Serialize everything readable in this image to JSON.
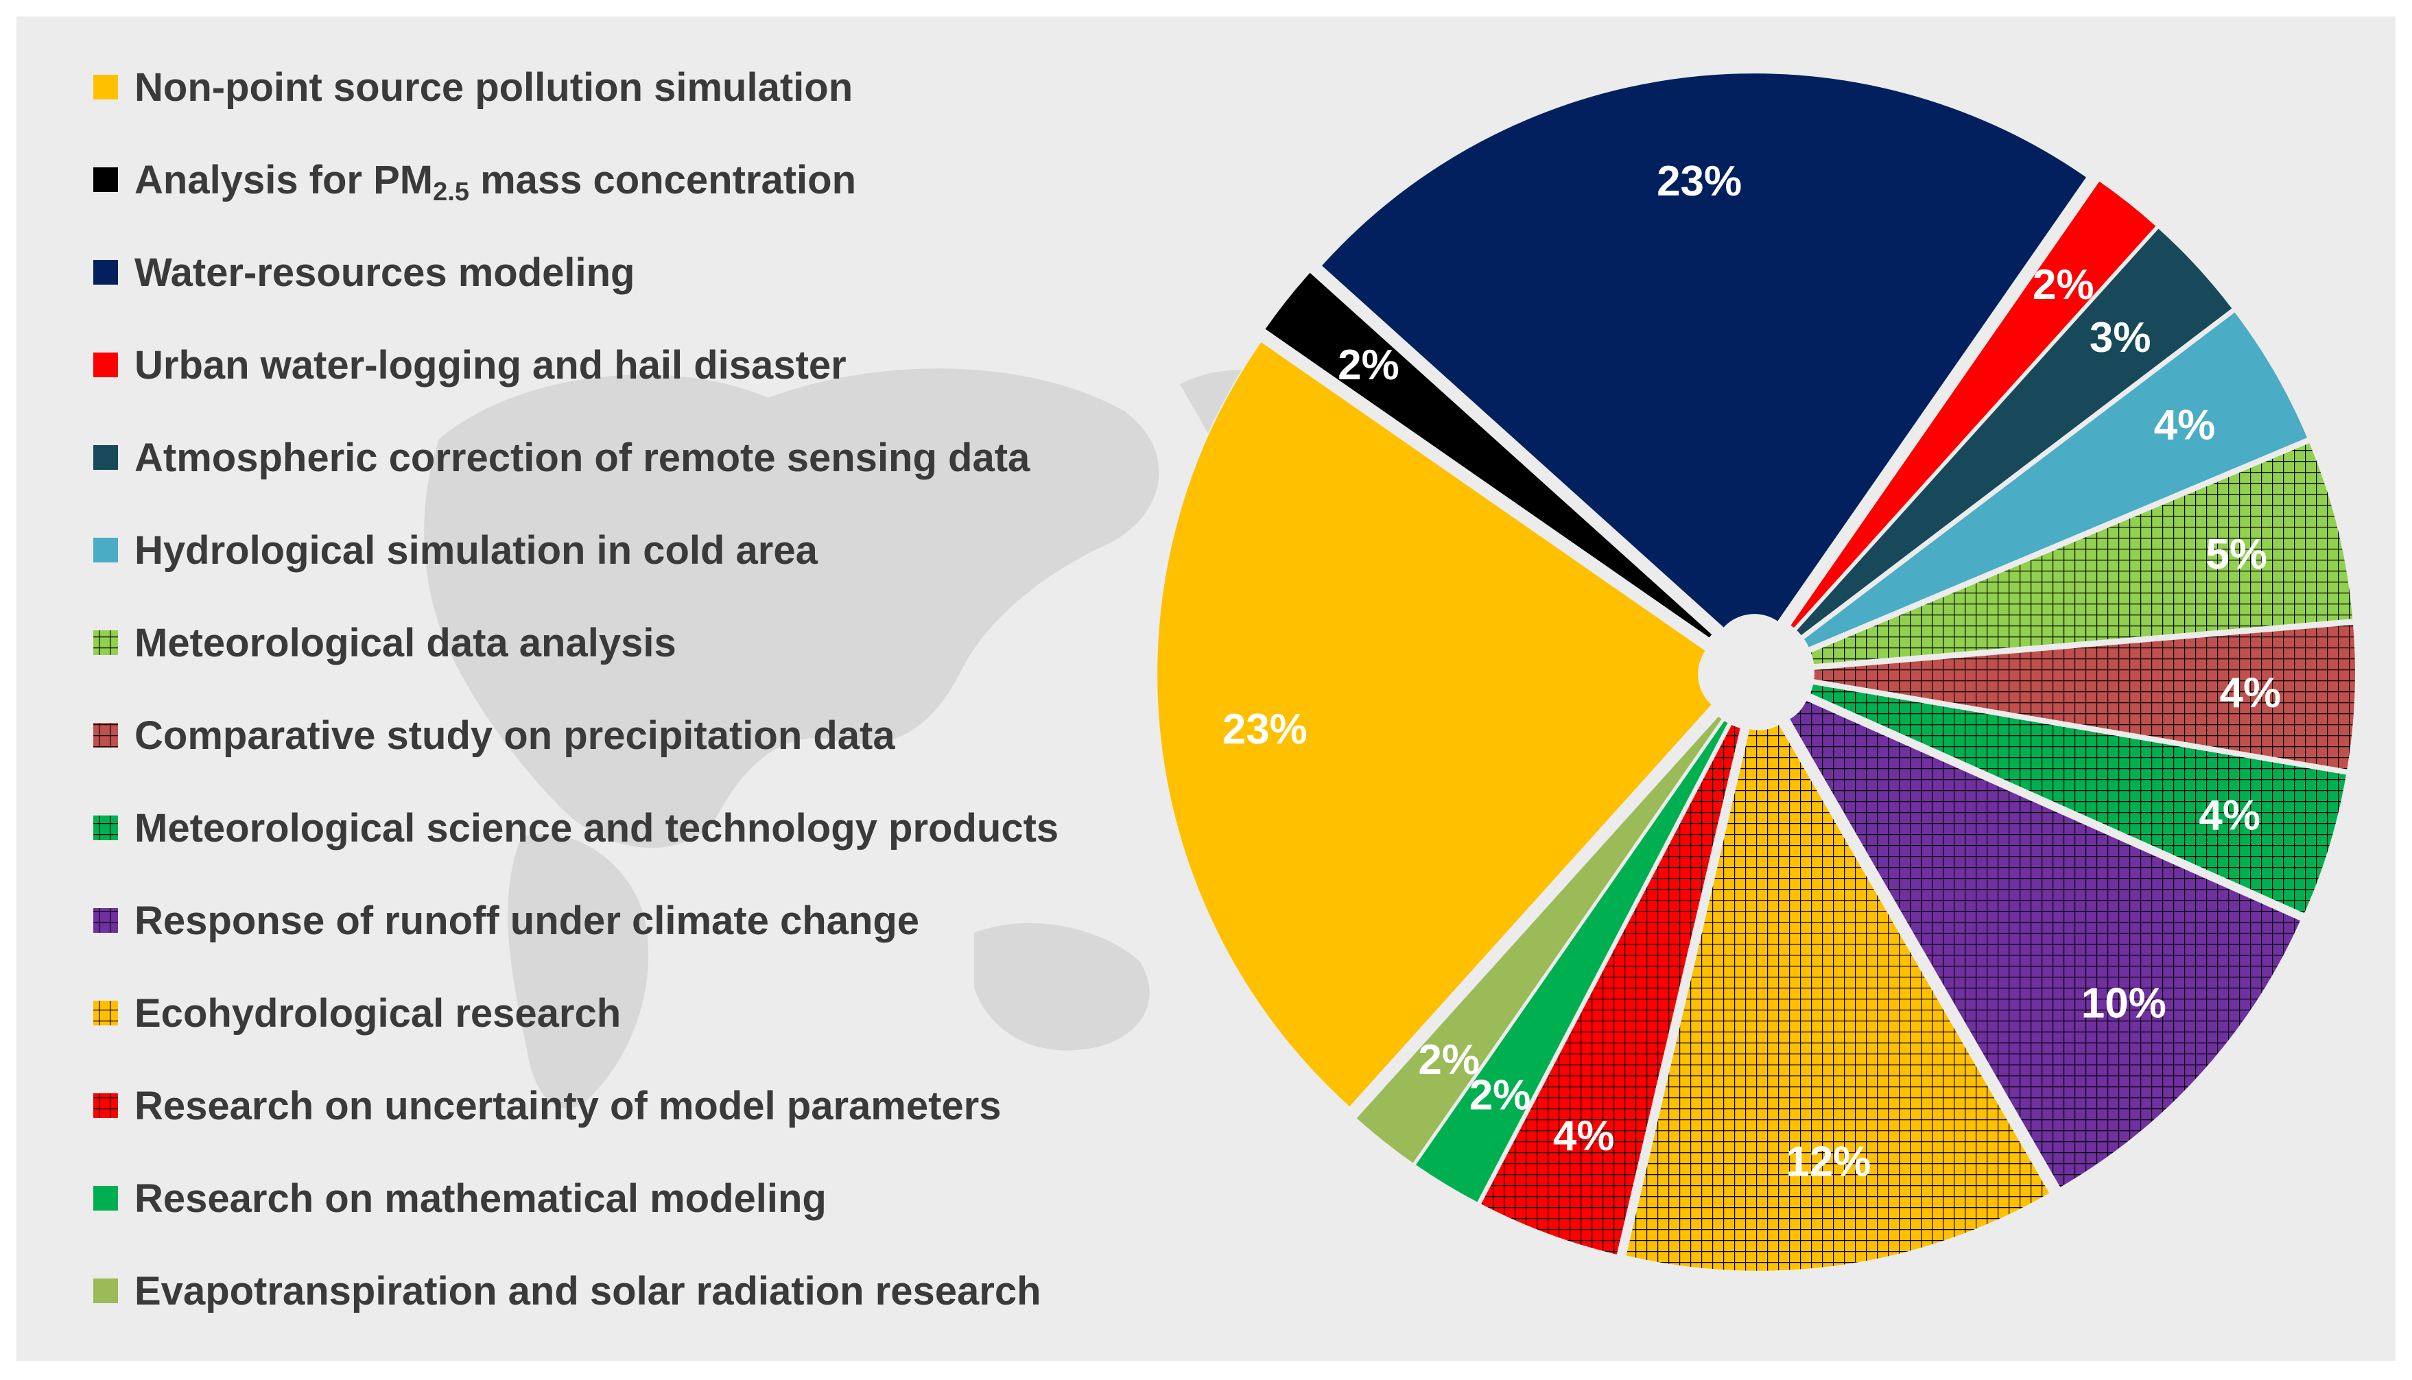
{
  "chart_data": {
    "type": "pie",
    "title": "",
    "legend_placement": "left",
    "slices": [
      {
        "label": "Water-resources modeling",
        "value": 23,
        "display": "23%",
        "color": "#02205e",
        "pattern": "solid"
      },
      {
        "label": "Urban water-logging and hail disaster",
        "value": 2,
        "display": "2%",
        "color": "#ff0000",
        "pattern": "solid"
      },
      {
        "label": "Atmospheric correction of remote sensing data",
        "value": 3,
        "display": "3%",
        "color": "#17495a",
        "pattern": "solid"
      },
      {
        "label": "Hydrological simulation in cold area",
        "value": 4,
        "display": "4%",
        "color": "#4bacc6",
        "pattern": "solid"
      },
      {
        "label": "Meteorological data analysis",
        "value": 5,
        "display": "5%",
        "color": "#92d050",
        "pattern": "grid"
      },
      {
        "label": "Comparative study on precipitation data",
        "value": 4,
        "display": "4%",
        "color": "#c0504d",
        "pattern": "grid"
      },
      {
        "label": "Meteorological science and technology products",
        "value": 4,
        "display": "4%",
        "color": "#00b050",
        "pattern": "grid"
      },
      {
        "label": "Response of runoff under climate change",
        "value": 10,
        "display": "10%",
        "color": "#7030a0",
        "pattern": "grid"
      },
      {
        "label": "Ecohydrological research",
        "value": 12,
        "display": "12%",
        "color": "#ffc000",
        "pattern": "grid"
      },
      {
        "label": "Research on uncertainty of model parameters",
        "value": 4,
        "display": "4%",
        "color": "#ff0000",
        "pattern": "grid"
      },
      {
        "label": "Research on mathematical modeling",
        "value": 2,
        "display": "2%",
        "color": "#00b050",
        "pattern": "solid"
      },
      {
        "label": "Evapotranspiration and solar radiation research",
        "value": 2,
        "display": "2%",
        "color": "#9bbb59",
        "pattern": "solid"
      },
      {
        "label": "Non-point source pollution simulation",
        "value": 23,
        "display": "23%",
        "color": "#ffc000",
        "pattern": "solid"
      },
      {
        "label": "Analysis for PM2.5 mass concentration",
        "value": 2,
        "display": "2%",
        "color": "#000000",
        "pattern": "solid"
      }
    ],
    "legend": [
      {
        "text": "Non-point source pollution simulation",
        "color": "#ffc000",
        "pattern": "solid"
      },
      {
        "text": "Analysis for PM",
        "sub": "2.5",
        "text_after": " mass concentration",
        "color": "#000000",
        "pattern": "solid"
      },
      {
        "text": "Water-resources modeling",
        "color": "#02205e",
        "pattern": "solid"
      },
      {
        "text": "Urban water-logging and hail disaster",
        "color": "#ff0000",
        "pattern": "solid"
      },
      {
        "text": "Atmospheric correction of remote sensing data",
        "color": "#17495a",
        "pattern": "solid"
      },
      {
        "text": "Hydrological simulation in cold area",
        "color": "#4bacc6",
        "pattern": "solid"
      },
      {
        "text": "Meteorological data analysis",
        "color": "#92d050",
        "pattern": "grid"
      },
      {
        "text": "Comparative study on precipitation data",
        "color": "#c0504d",
        "pattern": "grid"
      },
      {
        "text": "Meteorological science and technology products",
        "color": "#00b050",
        "pattern": "grid"
      },
      {
        "text": "Response of runoff under climate change",
        "color": "#7030a0",
        "pattern": "grid"
      },
      {
        "text": "Ecohydrological research",
        "color": "#ffc000",
        "pattern": "grid"
      },
      {
        "text": "Research on uncertainty of model parameters",
        "color": "#ff0000",
        "pattern": "grid"
      },
      {
        "text": "Research on mathematical modeling",
        "color": "#00b050",
        "pattern": "solid"
      },
      {
        "text": "Evapotranspiration and solar radiation research",
        "color": "#9bbb59",
        "pattern": "solid"
      }
    ]
  },
  "colors": {
    "background": "#ececec",
    "label_text": "#ffffff",
    "legend_text": "#3a3a3a",
    "grid_line": "#000000"
  }
}
